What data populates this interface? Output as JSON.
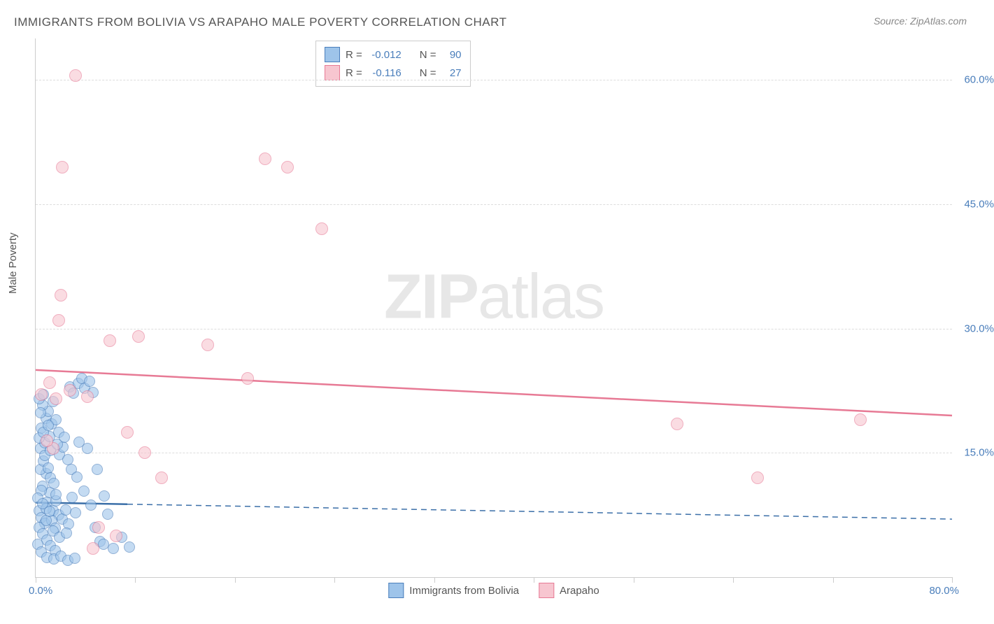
{
  "title": "IMMIGRANTS FROM BOLIVIA VS ARAPAHO MALE POVERTY CORRELATION CHART",
  "source": "Source: ZipAtlas.com",
  "ylabel": "Male Poverty",
  "watermark_zip": "ZIP",
  "watermark_atlas": "atlas",
  "chart": {
    "type": "scatter",
    "xlim": [
      0,
      80
    ],
    "ylim": [
      0,
      65
    ],
    "yticks": [
      15.0,
      30.0,
      45.0,
      60.0
    ],
    "ytick_labels": [
      "15.0%",
      "30.0%",
      "45.0%",
      "60.0%"
    ],
    "xtick_positions": [
      0,
      8.7,
      17.4,
      26.1,
      34.8,
      43.5,
      52.2,
      60.9,
      69.6,
      80
    ],
    "xtick_label_left": "0.0%",
    "xtick_label_right": "80.0%",
    "background_color": "#ffffff",
    "grid_color": "#dddddd",
    "series": [
      {
        "name": "Immigrants from Bolivia",
        "fill": "#9ec4ea",
        "stroke": "#4a7ebb",
        "opacity": 0.6,
        "marker_radius": 7,
        "points": [
          [
            0.3,
            8.0
          ],
          [
            0.5,
            7.2
          ],
          [
            0.8,
            6.5
          ],
          [
            1.0,
            9.0
          ],
          [
            1.2,
            10.2
          ],
          [
            0.6,
            11.0
          ],
          [
            0.9,
            12.5
          ],
          [
            1.5,
            8.0
          ],
          [
            1.8,
            9.2
          ],
          [
            2.0,
            7.5
          ],
          [
            0.4,
            13.0
          ],
          [
            0.7,
            14.0
          ],
          [
            1.1,
            13.2
          ],
          [
            1.3,
            12.0
          ],
          [
            1.6,
            11.3
          ],
          [
            0.5,
            10.5
          ],
          [
            0.2,
            9.5
          ],
          [
            0.9,
            8.3
          ],
          [
            1.4,
            6.8
          ],
          [
            1.7,
            5.9
          ],
          [
            2.3,
            7.0
          ],
          [
            2.6,
            8.1
          ],
          [
            2.9,
            6.4
          ],
          [
            3.2,
            9.6
          ],
          [
            3.5,
            7.8
          ],
          [
            0.3,
            6.0
          ],
          [
            0.6,
            5.2
          ],
          [
            1.0,
            4.5
          ],
          [
            1.3,
            3.8
          ],
          [
            1.7,
            3.2
          ],
          [
            2.1,
            14.8
          ],
          [
            0.4,
            15.5
          ],
          [
            0.8,
            16.2
          ],
          [
            1.2,
            17.0
          ],
          [
            0.5,
            18.0
          ],
          [
            0.9,
            19.2
          ],
          [
            1.4,
            18.5
          ],
          [
            1.1,
            20.0
          ],
          [
            0.6,
            20.8
          ],
          [
            1.8,
            19.0
          ],
          [
            2.0,
            17.5
          ],
          [
            0.3,
            21.5
          ],
          [
            0.7,
            22.0
          ],
          [
            1.5,
            21.2
          ],
          [
            3.0,
            23.0
          ],
          [
            3.3,
            22.2
          ],
          [
            3.7,
            23.4
          ],
          [
            4.0,
            24.0
          ],
          [
            4.3,
            22.8
          ],
          [
            4.7,
            23.6
          ],
          [
            5.0,
            22.3
          ],
          [
            2.4,
            15.7
          ],
          [
            2.8,
            14.2
          ],
          [
            3.1,
            13.0
          ],
          [
            3.6,
            12.1
          ],
          [
            4.2,
            10.4
          ],
          [
            4.8,
            8.7
          ],
          [
            5.2,
            6.0
          ],
          [
            5.6,
            4.3
          ],
          [
            5.9,
            4.0
          ],
          [
            6.8,
            3.5
          ],
          [
            7.5,
            4.8
          ],
          [
            8.2,
            3.6
          ],
          [
            6.3,
            7.6
          ],
          [
            6.0,
            9.8
          ],
          [
            5.4,
            13.0
          ],
          [
            4.5,
            15.5
          ],
          [
            0.2,
            4.0
          ],
          [
            0.5,
            3.0
          ],
          [
            1.0,
            2.4
          ],
          [
            1.6,
            2.2
          ],
          [
            2.2,
            2.5
          ],
          [
            2.8,
            2.0
          ],
          [
            3.4,
            2.3
          ],
          [
            0.3,
            16.8
          ],
          [
            0.7,
            17.5
          ],
          [
            1.1,
            18.3
          ],
          [
            0.4,
            19.8
          ],
          [
            0.8,
            14.7
          ],
          [
            1.3,
            15.3
          ],
          [
            1.9,
            16.0
          ],
          [
            2.5,
            16.9
          ],
          [
            3.8,
            16.3
          ],
          [
            0.9,
            6.8
          ],
          [
            1.5,
            5.6
          ],
          [
            2.1,
            4.8
          ],
          [
            2.7,
            5.3
          ],
          [
            1.2,
            7.9
          ],
          [
            1.8,
            10.0
          ],
          [
            0.6,
            8.9
          ]
        ]
      },
      {
        "name": "Arapaho",
        "fill": "#f7c6d0",
        "stroke": "#e77a95",
        "opacity": 0.6,
        "marker_radius": 8,
        "points": [
          [
            3.5,
            60.5
          ],
          [
            2.3,
            49.5
          ],
          [
            20.0,
            50.5
          ],
          [
            22.0,
            49.5
          ],
          [
            25.0,
            42.0
          ],
          [
            2.2,
            34.0
          ],
          [
            2.0,
            31.0
          ],
          [
            6.5,
            28.5
          ],
          [
            9.0,
            29.0
          ],
          [
            15.0,
            28.0
          ],
          [
            0.5,
            22.0
          ],
          [
            1.2,
            23.5
          ],
          [
            1.8,
            21.5
          ],
          [
            3.0,
            22.5
          ],
          [
            4.5,
            21.8
          ],
          [
            18.5,
            24.0
          ],
          [
            8.0,
            17.5
          ],
          [
            9.5,
            15.0
          ],
          [
            11.0,
            12.0
          ],
          [
            1.5,
            15.5
          ],
          [
            1.0,
            16.5
          ],
          [
            5.5,
            6.0
          ],
          [
            7.0,
            5.0
          ],
          [
            5.0,
            3.5
          ],
          [
            63.0,
            12.0
          ],
          [
            56.0,
            18.5
          ],
          [
            72.0,
            19.0
          ]
        ]
      }
    ],
    "regressions": [
      {
        "series": 1,
        "color": "#e77a95",
        "style": "solid",
        "y_start": 25.0,
        "y_end": 19.5
      },
      {
        "series": 0,
        "color": "#3b6fa8",
        "style": "solid-then-dash",
        "y_start": 9.0,
        "y_end": 7.0,
        "solid_until_x": 8.0
      }
    ]
  },
  "legend_top": {
    "rows": [
      {
        "swatch_fill": "#9ec4ea",
        "swatch_stroke": "#4a7ebb",
        "r_label": "R =",
        "r_value": "-0.012",
        "n_label": "N =",
        "n_value": "90"
      },
      {
        "swatch_fill": "#f7c6d0",
        "swatch_stroke": "#e77a95",
        "r_label": "R =",
        "r_value": "-0.116",
        "n_label": "N =",
        "n_value": "27"
      }
    ]
  },
  "legend_bottom": {
    "items": [
      {
        "swatch_fill": "#9ec4ea",
        "swatch_stroke": "#4a7ebb",
        "label": "Immigrants from Bolivia"
      },
      {
        "swatch_fill": "#f7c6d0",
        "swatch_stroke": "#e77a95",
        "label": "Arapaho"
      }
    ]
  }
}
